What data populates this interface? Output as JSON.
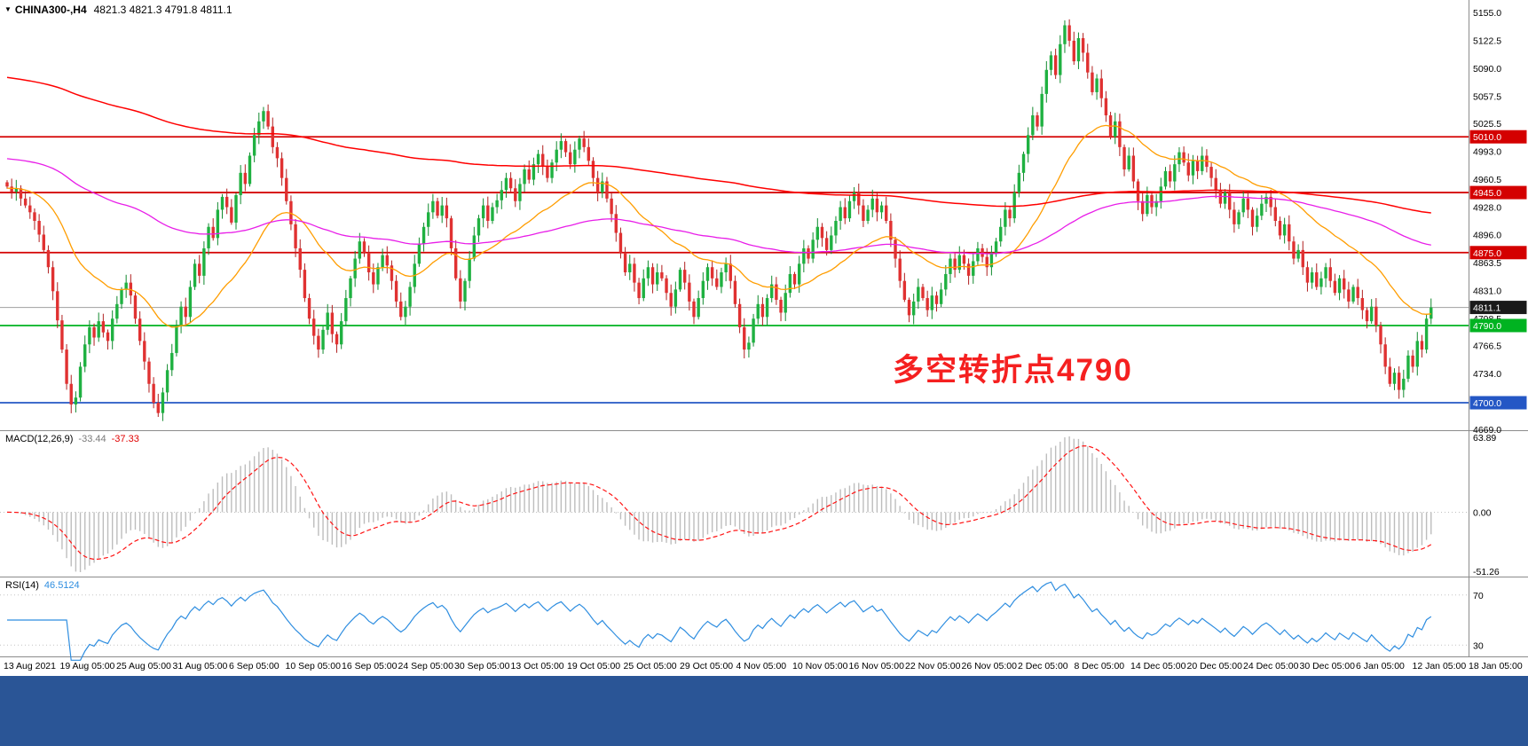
{
  "window": {
    "taskbar_color": "#2a5596"
  },
  "chart_data": {
    "type": "candlestick",
    "symbol": "CHINA300-",
    "timeframe": "H4",
    "title": "CHINA300-,H4",
    "ohlc_display": "4821.3 4821.3 4791.8 4811.1",
    "dropdown_icon": "▼",
    "y_range": [
      4669.0,
      5155.0
    ],
    "y_ticks": [
      "5155.0",
      "5122.5",
      "5090.0",
      "5057.5",
      "5025.5",
      "4993.0",
      "4960.5",
      "4928.0",
      "4896.0",
      "4863.5",
      "4831.0",
      "4798.5",
      "4766.5",
      "4734.0",
      "4669.0"
    ],
    "x_labels": [
      "13 Aug 2021",
      "19 Aug 05:00",
      "25 Aug 05:00",
      "31 Aug 05:00",
      "6 Sep 05:00",
      "10 Sep 05:00",
      "16 Sep 05:00",
      "24 Sep 05:00",
      "30 Sep 05:00",
      "13 Oct 05:00",
      "19 Oct 05:00",
      "25 Oct 05:00",
      "29 Oct 05:00",
      "4 Nov 05:00",
      "10 Nov 05:00",
      "16 Nov 05:00",
      "22 Nov 05:00",
      "26 Nov 05:00",
      "2 Dec 05:00",
      "8 Dec 05:00",
      "14 Dec 05:00",
      "20 Dec 05:00",
      "24 Dec 05:00",
      "30 Dec 05:00",
      "6 Jan 05:00",
      "12 Jan 05:00",
      "18 Jan 05:00"
    ],
    "closes": [
      4952,
      4946,
      4950,
      4938,
      4930,
      4922,
      4912,
      4896,
      4878,
      4858,
      4830,
      4796,
      4762,
      4722,
      4698,
      4706,
      4742,
      4768,
      4788,
      4776,
      4795,
      4782,
      4772,
      4798,
      4815,
      4832,
      4840,
      4825,
      4798,
      4772,
      4748,
      4722,
      4700,
      4688,
      4712,
      4738,
      4758,
      4790,
      4812,
      4800,
      4835,
      4862,
      4848,
      4880,
      4905,
      4892,
      4925,
      4940,
      4928,
      4910,
      4942,
      4968,
      4955,
      4988,
      5012,
      5028,
      5040,
      5022,
      4998,
      4985,
      4962,
      4935,
      4908,
      4880,
      4855,
      4822,
      4798,
      4778,
      4762,
      4785,
      4805,
      4780,
      4768,
      4795,
      4822,
      4845,
      4868,
      4888,
      4875,
      4852,
      4838,
      4858,
      4872,
      4860,
      4842,
      4818,
      4800,
      4812,
      4835,
      4862,
      4885,
      4905,
      4922,
      4935,
      4918,
      4930,
      4915,
      4880,
      4845,
      4818,
      4842,
      4868,
      4895,
      4915,
      4930,
      4912,
      4928,
      4936,
      4948,
      4962,
      4950,
      4935,
      4955,
      4972,
      4960,
      4978,
      4990,
      4975,
      4962,
      4980,
      4995,
      5005,
      4992,
      4978,
      4995,
      5008,
      4998,
      4982,
      4962,
      4945,
      4958,
      4938,
      4920,
      4898,
      4875,
      4852,
      4862,
      4840,
      4822,
      4845,
      4858,
      4838,
      4852,
      4845,
      4828,
      4812,
      4832,
      4855,
      4840,
      4818,
      4800,
      4822,
      4842,
      4858,
      4845,
      4835,
      4852,
      4862,
      4842,
      4815,
      4788,
      4762,
      4770,
      4798,
      4815,
      4800,
      4822,
      4838,
      4820,
      4805,
      4828,
      4850,
      4838,
      4862,
      4880,
      4868,
      4890,
      4905,
      4892,
      4878,
      4895,
      4912,
      4928,
      4915,
      4935,
      4945,
      4930,
      4912,
      4925,
      4938,
      4922,
      4930,
      4912,
      4890,
      4868,
      4842,
      4820,
      4802,
      4818,
      4835,
      4822,
      4808,
      4825,
      4815,
      4832,
      4850,
      4868,
      4855,
      4872,
      4862,
      4848,
      4865,
      4880,
      4870,
      4858,
      4875,
      4888,
      4905,
      4925,
      4915,
      4945,
      4968,
      4990,
      5012,
      5035,
      5022,
      5060,
      5088,
      5105,
      5082,
      5118,
      5140,
      5122,
      5098,
      5125,
      5108,
      5085,
      5062,
      5078,
      5055,
      5035,
      5010,
      5028,
      4998,
      4972,
      4988,
      4958,
      4935,
      4920,
      4942,
      4928,
      4935,
      4952,
      4970,
      4958,
      4978,
      4992,
      4980,
      4965,
      4982,
      4970,
      4988,
      4975,
      4962,
      4948,
      4932,
      4945,
      4925,
      4908,
      4922,
      4938,
      4925,
      4905,
      4918,
      4932,
      4940,
      4928,
      4912,
      4895,
      4908,
      4888,
      4868,
      4878,
      4858,
      4840,
      4852,
      4835,
      4845,
      4858,
      4842,
      4828,
      4845,
      4832,
      4818,
      4835,
      4822,
      4808,
      4795,
      4812,
      4790,
      4768,
      4742,
      4722,
      4735,
      4715,
      4728,
      4755,
      4742,
      4772,
      4762,
      4798,
      4811.1
    ],
    "hlines": [
      {
        "value": 5010.0,
        "label": "5010.0",
        "color": "#d40000"
      },
      {
        "value": 4945.0,
        "label": "4945.0",
        "color": "#d40000"
      },
      {
        "value": 4875.0,
        "label": "4875.0",
        "color": "#d40000"
      },
      {
        "value": 4790.0,
        "label": "4790.0",
        "color": "#00b321"
      },
      {
        "value": 4700.0,
        "label": "4700.0",
        "color": "#2457c5"
      }
    ],
    "current_price": {
      "value": 4811.1,
      "label": "4811.1"
    },
    "annotation": {
      "text": "多空转折点4790",
      "color": "#f52020"
    },
    "indicators": {
      "macd": {
        "label": "MACD(12,26,9)",
        "value_main": "-33.44",
        "value_signal": "-37.33",
        "axis_ticks": [
          "63.89",
          "0.00",
          "-51.26"
        ],
        "axis_range": [
          -51.26,
          63.89
        ]
      },
      "rsi": {
        "label": "RSI(14)",
        "value": "46.5124",
        "levels": [
          70,
          30
        ],
        "axis_ticks": [
          "70",
          "30"
        ]
      }
    },
    "colors": {
      "up": "#1fb141",
      "up_wick": "#128a2f",
      "down": "#e03131",
      "down_wick": "#b02020",
      "ma_fast": "#ff9d00",
      "ma_mid": "#e81ee8",
      "ma_slow": "#ff0000",
      "macd_hist": "#bdbdbd",
      "macd_signal": "#ff1414",
      "rsi_line": "#2f8ee0",
      "current_line": "#a0a0a0",
      "current_tag_bg": "#1a1a1a",
      "axis_text": "#000000",
      "separator": "#8c8c8c"
    }
  }
}
